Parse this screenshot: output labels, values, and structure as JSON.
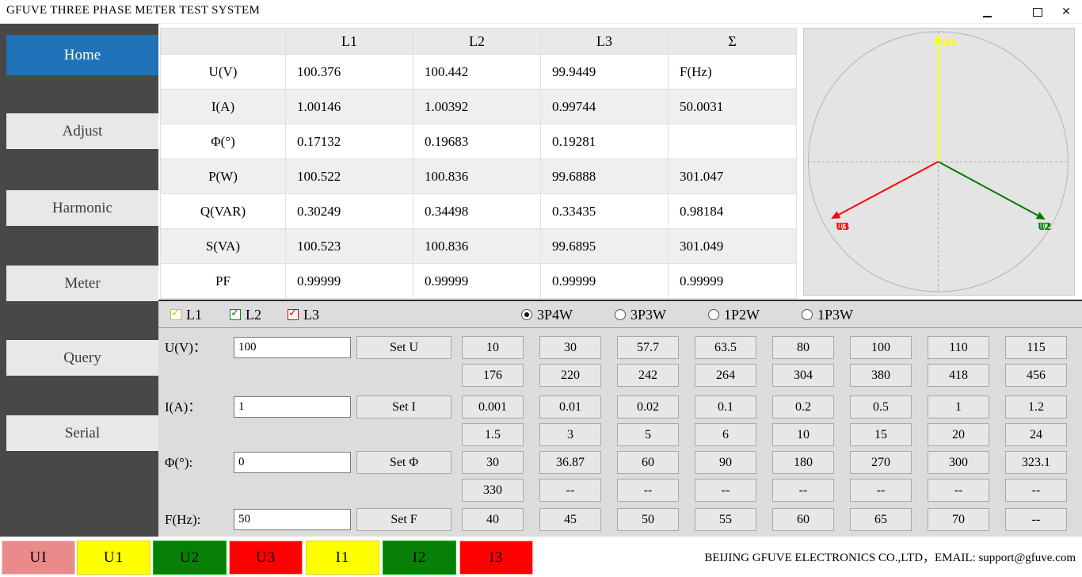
{
  "window": {
    "title": "GFUVE THREE PHASE METER TEST SYSTEM",
    "controls": [
      "minimize",
      "maximize",
      "close"
    ]
  },
  "sidebar": {
    "items": [
      {
        "label": "Home",
        "active": true
      },
      {
        "label": "Adjust",
        "active": false
      },
      {
        "label": "Harmonic",
        "active": false
      },
      {
        "label": "Meter",
        "active": false
      },
      {
        "label": "Query",
        "active": false
      },
      {
        "label": "Serial",
        "active": false
      }
    ],
    "active_color": "#1f72b8"
  },
  "measurements": {
    "columns": [
      "",
      "L1",
      "L2",
      "L3",
      "Σ"
    ],
    "rows": [
      {
        "label": "U(V)",
        "l1": "100.376",
        "l2": "100.442",
        "l3": "99.9449",
        "sum": "F(Hz)"
      },
      {
        "label": "I(A)",
        "l1": "1.00146",
        "l2": "1.00392",
        "l3": "0.99744",
        "sum": "50.0031"
      },
      {
        "label": "Φ(°)",
        "l1": "0.17132",
        "l2": "0.19683",
        "l3": "0.19281",
        "sum": ""
      },
      {
        "label": "P(W)",
        "l1": "100.522",
        "l2": "100.836",
        "l3": "99.6888",
        "sum": "301.047"
      },
      {
        "label": "Q(VAR)",
        "l1": "0.30249",
        "l2": "0.34498",
        "l3": "0.33435",
        "sum": "0.98184"
      },
      {
        "label": "S(VA)",
        "l1": "100.523",
        "l2": "100.836",
        "l3": "99.6895",
        "sum": "301.049"
      },
      {
        "label": "PF",
        "l1": "0.99999",
        "l2": "0.99999",
        "l3": "0.99999",
        "sum": "0.99999"
      }
    ]
  },
  "phasor": {
    "vectors": [
      {
        "labels": [
          "U1",
          "I1"
        ],
        "color": "#ffff00",
        "angle_deg": 90
      },
      {
        "labels": [
          "U2",
          "I2"
        ],
        "color": "#007a00",
        "angle_deg": -28
      },
      {
        "labels": [
          "U3",
          "I3"
        ],
        "color": "#ff0000",
        "angle_deg": 208
      }
    ]
  },
  "phase_select": {
    "checkboxes": [
      {
        "label": "L1",
        "checked": true,
        "color": "#cfc400"
      },
      {
        "label": "L2",
        "checked": true,
        "color": "#0a8a0a"
      },
      {
        "label": "L3",
        "checked": true,
        "color": "#e00000"
      }
    ],
    "wiring_modes": [
      {
        "label": "3P4W",
        "selected": true
      },
      {
        "label": "3P3W",
        "selected": false
      },
      {
        "label": "1P2W",
        "selected": false
      },
      {
        "label": "1P3W",
        "selected": false
      }
    ]
  },
  "setters": [
    {
      "id": "u",
      "label": "U(V)：",
      "value": "100",
      "button": "Set U",
      "presets": [
        [
          "10",
          "30",
          "57.7",
          "63.5",
          "80",
          "100",
          "110",
          "115"
        ],
        [
          "176",
          "220",
          "242",
          "264",
          "304",
          "380",
          "418",
          "456"
        ]
      ]
    },
    {
      "id": "i",
      "label": "I(A)：",
      "value": "1",
      "button": "Set I",
      "presets": [
        [
          "0.001",
          "0.01",
          "0.02",
          "0.1",
          "0.2",
          "0.5",
          "1",
          "1.2"
        ],
        [
          "1.5",
          "3",
          "5",
          "6",
          "10",
          "15",
          "20",
          "24"
        ]
      ]
    },
    {
      "id": "phi",
      "label": "Φ(°):",
      "value": "0",
      "button": "Set Φ",
      "presets": [
        [
          "30",
          "36.87",
          "60",
          "90",
          "180",
          "270",
          "300",
          "323.1"
        ],
        [
          "330",
          "--",
          "--",
          "--",
          "--",
          "--",
          "--",
          "--"
        ]
      ]
    },
    {
      "id": "f",
      "label": "F(Hz):",
      "value": "50",
      "button": "Set F",
      "presets": [
        [
          "40",
          "45",
          "50",
          "55",
          "60",
          "65",
          "70",
          "--"
        ]
      ]
    }
  ],
  "bottom_bar": {
    "buttons": [
      {
        "label": "UI",
        "bg": "#e98b8b",
        "border": "#f5caca"
      },
      {
        "label": "U1",
        "bg": "#ffff00",
        "border": "#d8d800"
      },
      {
        "label": "U2",
        "bg": "#068006",
        "border": "#00b400"
      },
      {
        "label": "U3",
        "bg": "#ff0000",
        "border": "#ffb0b0"
      },
      {
        "label": "I1",
        "bg": "#ffff00",
        "border": "#d8d800"
      },
      {
        "label": "I2",
        "bg": "#068006",
        "border": "#00b400"
      },
      {
        "label": "I3",
        "bg": "#ff0000",
        "border": "#ffb0b0"
      }
    ]
  },
  "footer": {
    "text": "BEIJING GFUVE ELECTRONICS CO.,LTD，EMAIL: support@gfuve.com"
  }
}
